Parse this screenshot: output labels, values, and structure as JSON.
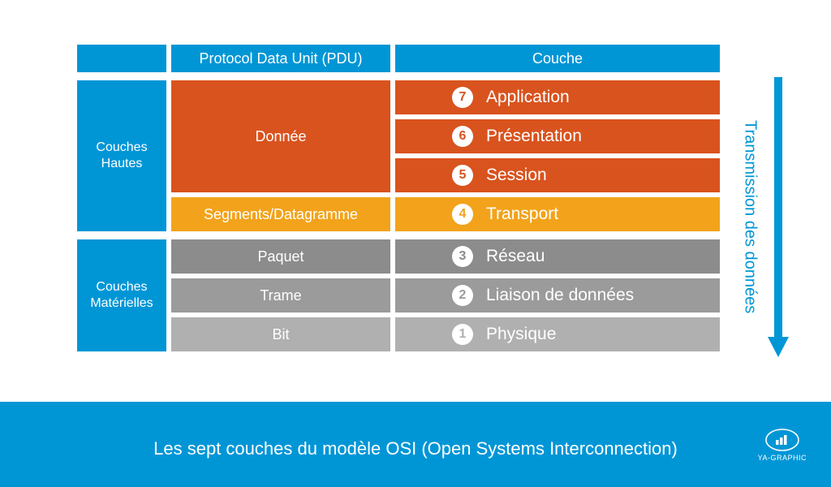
{
  "colors": {
    "blue": "#0096d6",
    "orange_dark": "#d9531e",
    "orange_light": "#f2a31b",
    "gray1": "#8c8c8c",
    "gray2": "#9b9b9b",
    "gray3": "#b0b0b0",
    "white": "#ffffff"
  },
  "header": {
    "pdu": "Protocol Data Unit (PDU)",
    "layer": "Couche"
  },
  "groups": {
    "high": {
      "label": "Couches\nHautes",
      "merged_pdu": "Donnée",
      "merged_layers": [
        {
          "num": "7",
          "name": "Application"
        },
        {
          "num": "6",
          "name": "Présentation"
        },
        {
          "num": "5",
          "name": "Session"
        }
      ],
      "extra_row": {
        "pdu": "Segments/Datagramme",
        "layer": {
          "num": "4",
          "name": "Transport"
        },
        "color_key": "orange_light"
      }
    },
    "low": {
      "label": "Couches\nMatérielles",
      "rows": [
        {
          "pdu": "Paquet",
          "layer": {
            "num": "3",
            "name": "Réseau"
          },
          "color_key": "gray1"
        },
        {
          "pdu": "Trame",
          "layer": {
            "num": "2",
            "name": "Liaison de données"
          },
          "color_key": "gray2"
        },
        {
          "pdu": "Bit",
          "layer": {
            "num": "1",
            "name": "Physique"
          },
          "color_key": "gray3"
        }
      ]
    }
  },
  "arrow_label": "Transmission des données",
  "footer": {
    "title": "Les sept couches du modèle OSI (Open Systems Interconnection)",
    "logo": "YA-GRAPHIC"
  }
}
